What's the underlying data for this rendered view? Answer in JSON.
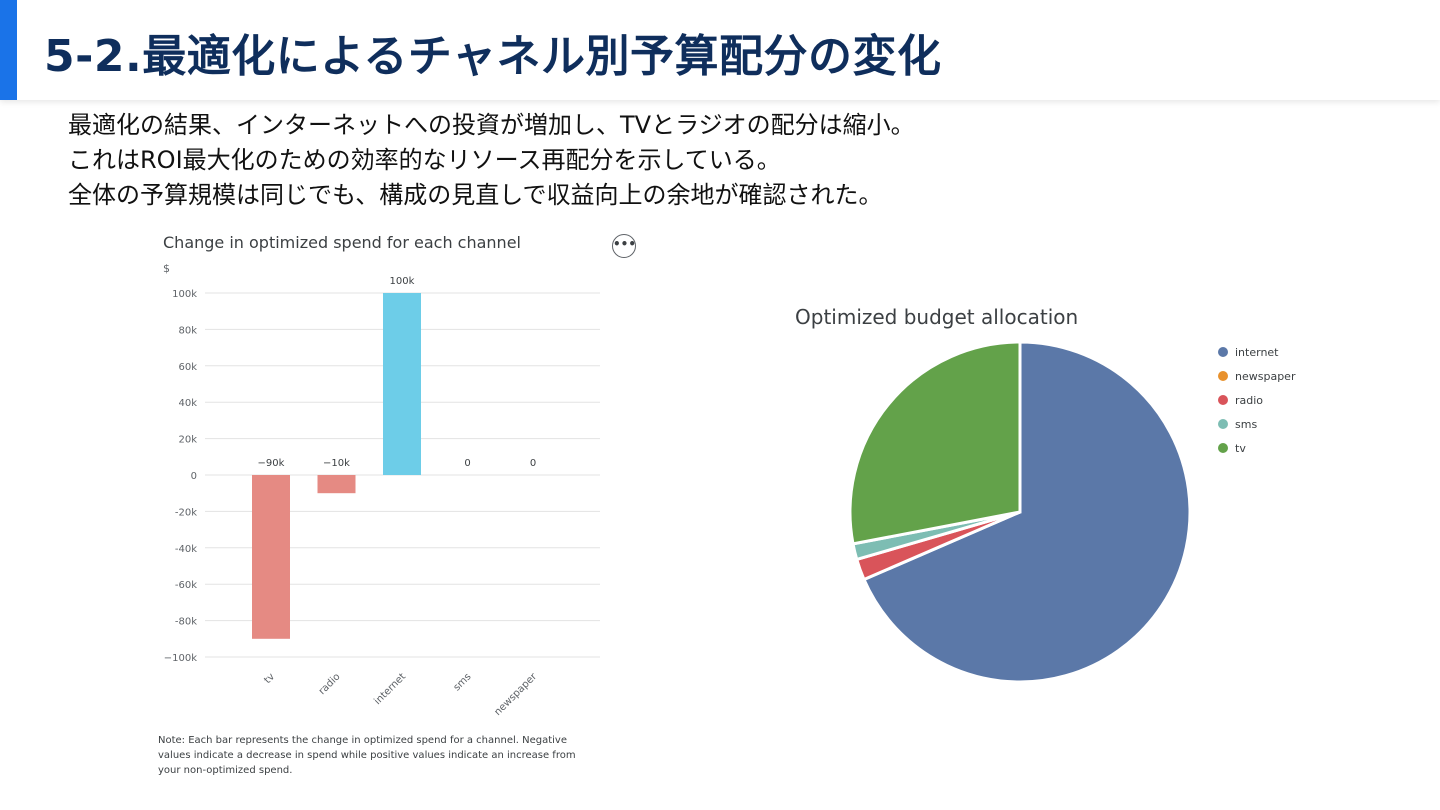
{
  "slide": {
    "title": "5-2.最適化によるチャネル別予算配分の変化",
    "body_lines": [
      "最適化の結果、インターネットへの投資が増加し、TVとラジオの配分は縮小。",
      "これはROI最大化のための効率的なリソース再配分を示している。",
      "全体の予算規模は同じでも、構成の見直しで収益向上の余地が確認された。"
    ],
    "accent_color": "#1a73e8"
  },
  "chart_data": [
    {
      "type": "bar",
      "title": "Change in optimized spend for each channel",
      "ylabel": "$",
      "categories": [
        "tv",
        "radio",
        "internet",
        "sms",
        "newspaper"
      ],
      "values": [
        -90000,
        -10000,
        100000,
        0,
        0
      ],
      "data_labels": [
        "−90k",
        "−10k",
        "100k",
        "0",
        "0"
      ],
      "ylim": [
        -100000,
        100000
      ],
      "yticks": [
        100000,
        80000,
        60000,
        40000,
        20000,
        0,
        -20000,
        -40000,
        -60000,
        -80000,
        -100000
      ],
      "ytick_labels": [
        "100k",
        "80k",
        "60k",
        "40k",
        "20k",
        "0",
        "-20k",
        "-40k",
        "-60k",
        "-80k",
        "−100k"
      ],
      "grid": true,
      "colors": {
        "positive": "#6dcde8",
        "negative": "#e58a83"
      },
      "note": "Note: Each bar represents the change in optimized spend for a channel. Negative values indicate a decrease in spend while positive values indicate an increase from your non-optimized spend.",
      "menu_icon": "more-horizontal-icon"
    },
    {
      "type": "pie",
      "title": "Optimized budget allocation",
      "categories": [
        "internet",
        "newspaper",
        "radio",
        "sms",
        "tv"
      ],
      "values": [
        68.5,
        0,
        2.0,
        1.5,
        28.0
      ],
      "colors": [
        "#5b78a8",
        "#e8912d",
        "#d9545a",
        "#7dbdb3",
        "#63a24a"
      ],
      "legend_position": "right"
    }
  ]
}
